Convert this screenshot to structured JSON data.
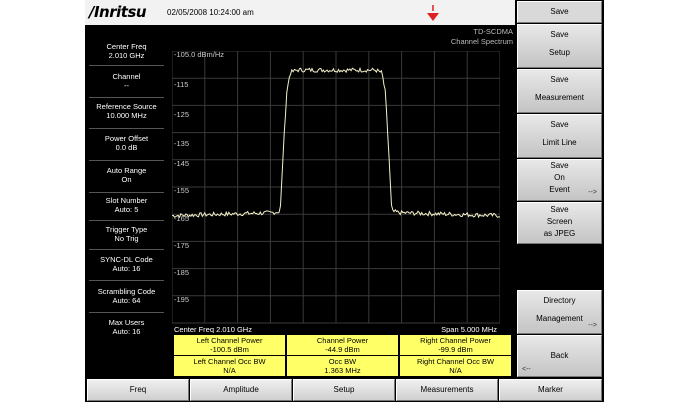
{
  "header": {
    "brand": "/Inritsu",
    "datetime": "02/05/2008 10:24:00 am",
    "mode": "TD-SCDMA",
    "view": "Channel Spectrum",
    "status_icon": "signal-alert-icon",
    "status_color": "#e02020"
  },
  "left_panel": [
    {
      "label": "Center Freq",
      "value": "2.010 GHz"
    },
    {
      "label": "Channel",
      "value": "--"
    },
    {
      "label": "Reference Source",
      "value": "10.000 MHz"
    },
    {
      "label": "Power Offset",
      "value": "0.0 dB"
    },
    {
      "label": "Auto Range",
      "value": "On"
    },
    {
      "label": "Slot Number",
      "value": "Auto: 5"
    },
    {
      "label": "Trigger Type",
      "value": "No Trig"
    },
    {
      "label": "SYNC-DL Code",
      "value": "Auto: 16"
    },
    {
      "label": "Scrambling Code",
      "value": "Auto:  64"
    },
    {
      "label": "Max Users",
      "value": "Auto: 16"
    }
  ],
  "graph": {
    "y_labels": [
      "-105.0 dBm/Hz",
      "-115",
      "-125",
      "-135",
      "-145",
      "-155",
      "-165",
      "-175",
      "-185",
      "-195"
    ],
    "center_freq": "Center Freq 2.010 GHz",
    "span": "Span 5.000 MHz",
    "trace_color": "#f5f0c8"
  },
  "chart_data": {
    "type": "line",
    "title": "Channel Spectrum",
    "xlabel": "Center Freq 2.010 GHz",
    "ylabel": "dBm/Hz",
    "ylim": [
      -205,
      -105
    ],
    "x_range_mhz": [
      -2.5,
      2.5
    ],
    "grid": true,
    "series": [
      {
        "x": [
          -2.5,
          -1.0,
          -0.85,
          -0.8,
          -0.75,
          -0.7,
          -0.6,
          0.0,
          0.6,
          0.7,
          0.75,
          0.8,
          0.85,
          1.0,
          2.5
        ],
        "y": [
          -165.5,
          -164.5,
          -164,
          -140,
          -120,
          -113,
          -112,
          -112,
          -112,
          -113,
          -120,
          -140,
          -164,
          -164.5,
          -165.5
        ]
      }
    ]
  },
  "measurements": [
    {
      "label": "Left Channel Power",
      "value": "-100.5 dBm"
    },
    {
      "label": "Channel Power",
      "value": "-44.9 dBm"
    },
    {
      "label": "Right Channel Power",
      "value": "-99.9 dBm"
    },
    {
      "label": "Left Channel Occ BW",
      "value": "N/A"
    },
    {
      "label": "Occ BW",
      "value": "1.363 MHz"
    },
    {
      "label": "Right Channel Occ BW",
      "value": "N/A"
    }
  ],
  "softkeys": {
    "title": "Save",
    "keys": [
      {
        "lines": [
          "Save",
          "Setup"
        ]
      },
      {
        "lines": [
          "Save",
          "Measurement"
        ]
      },
      {
        "lines": [
          "Save",
          "Limit Line"
        ]
      },
      {
        "lines": [
          "Save",
          "On",
          "Event"
        ],
        "arrow": "-->"
      },
      {
        "lines": [
          "Save",
          "Screen",
          "as JPEG"
        ]
      },
      {
        "lines": [
          "Directory",
          "Management"
        ],
        "arrow": "-->"
      },
      {
        "lines": [
          "Back"
        ],
        "left_arrow": "<--"
      }
    ]
  },
  "tabs": [
    "Freq",
    "Amplitude",
    "Setup",
    "Measurements",
    "Marker"
  ]
}
